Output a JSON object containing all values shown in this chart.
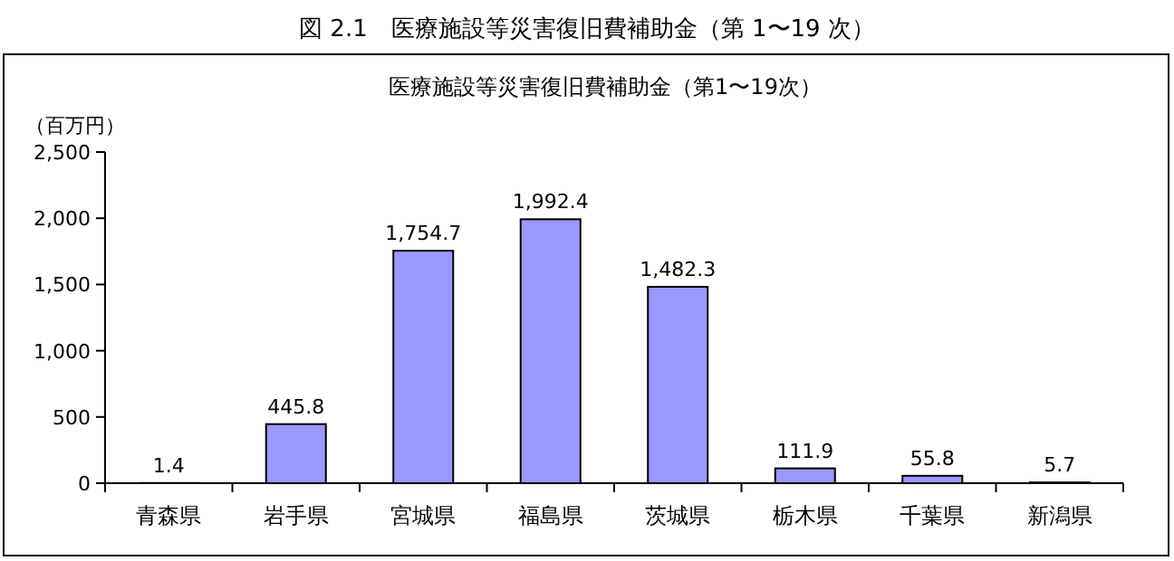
{
  "chart_data": {
    "type": "bar",
    "title": "図 2.1　医療施設等災害復旧費補助金（第 1〜19 次）",
    "subtitle": "医療施設等災害復旧費補助金（第1〜19次）",
    "ylabel": "（百万円）",
    "categories": [
      "青森県",
      "岩手県",
      "宮城県",
      "福島県",
      "茨城県",
      "栃木県",
      "千葉県",
      "新潟県"
    ],
    "values": [
      1.4,
      445.8,
      1754.7,
      1992.4,
      1482.3,
      111.9,
      55.8,
      5.7
    ],
    "color": "#9999ff",
    "ylim": [
      0,
      2500
    ],
    "yticks": [
      {
        "value": 0,
        "label": "0"
      },
      {
        "value": 500,
        "label": "500"
      },
      {
        "value": 1000,
        "label": "1,000"
      },
      {
        "value": 1500,
        "label": "1,500"
      },
      {
        "value": 2000,
        "label": "2,000"
      },
      {
        "value": 2500,
        "label": "2,500"
      }
    ],
    "value_labels": [
      "1.4",
      "445.8",
      "1,754.7",
      "1,992.4",
      "1,482.3",
      "111.9",
      "55.8",
      "5.7"
    ],
    "grid": false
  }
}
